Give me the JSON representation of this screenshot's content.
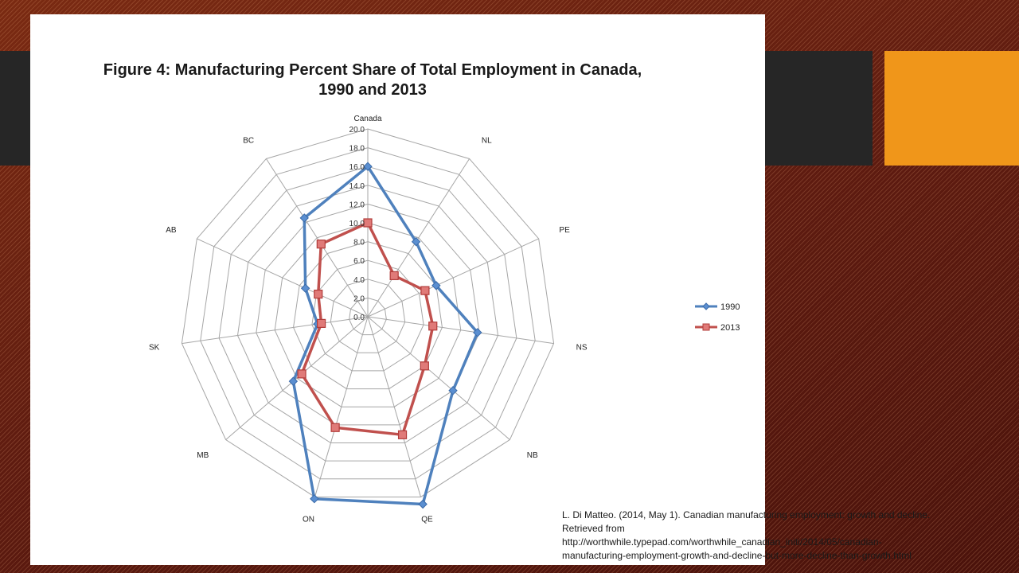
{
  "slide": {
    "citation": {
      "line1": "L. Di Matteo. (2014, May 1). Canadian manufacturing employment: growth and decline.",
      "line2": "Retrieved from",
      "line3": "http://worthwhile.typepad.com/worthwhile_canadian_initi/2014/05/canadian-",
      "line4": "manufacturing-employment-growth-and-decline-but-more-decline-than-growth.html"
    }
  },
  "chart_data": {
    "type": "radar",
    "title": "Figure 4: Manufacturing Percent  Share of Total Employment in Canada, 1990 and 2013",
    "title_line1": "Figure 4: Manufacturing Percent  Share of Total Employment in Canada,",
    "title_line2": "1990 and 2013",
    "categories": [
      "Canada",
      "NL",
      "PE",
      "NS",
      "NB",
      "QE",
      "ON",
      "MB",
      "SK",
      "AB",
      "BC"
    ],
    "rlim": [
      0,
      20
    ],
    "ticks": [
      "0.0",
      "2.0",
      "4.0",
      "6.0",
      "8.0",
      "10.0",
      "12.0",
      "14.0",
      "16.0",
      "18.0",
      "20.0"
    ],
    "grid": true,
    "legend_position": "right",
    "series": [
      {
        "name": "1990",
        "color": "#4f81bd",
        "marker": "diamond",
        "values": [
          16.0,
          9.5,
          8.0,
          11.8,
          12.0,
          20.8,
          20.2,
          10.5,
          5.4,
          7.3,
          12.5
        ]
      },
      {
        "name": "2013",
        "color": "#c0504d",
        "marker": "square",
        "values": [
          10.0,
          5.2,
          6.7,
          7.0,
          8.0,
          13.1,
          12.3,
          9.3,
          5.0,
          5.8,
          9.2
        ]
      }
    ]
  }
}
